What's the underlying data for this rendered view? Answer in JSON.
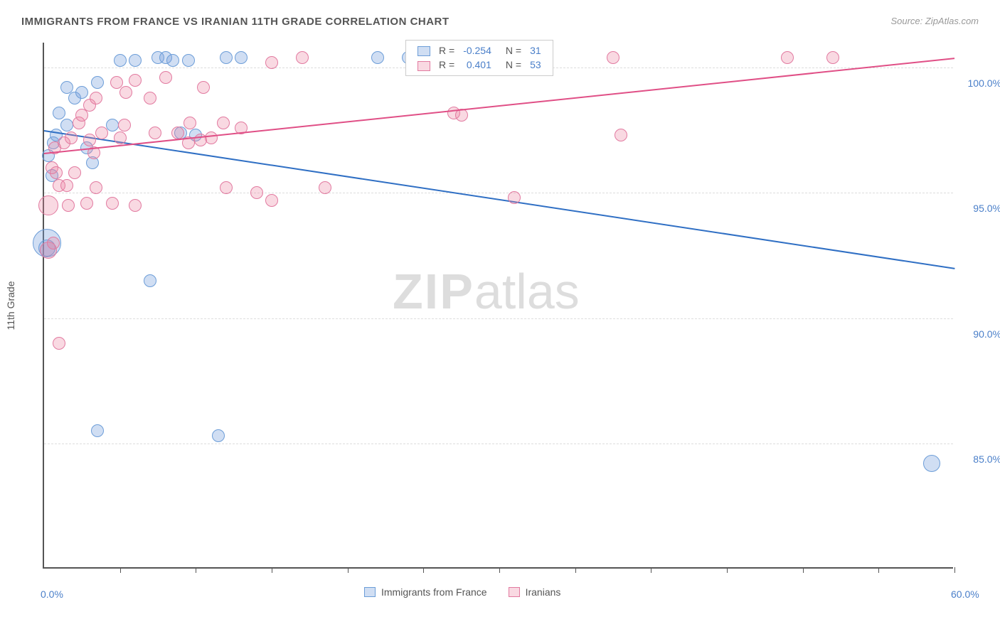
{
  "title": "IMMIGRANTS FROM FRANCE VS IRANIAN 11TH GRADE CORRELATION CHART",
  "source": "Source: ZipAtlas.com",
  "ylabel": "11th Grade",
  "watermark": {
    "bold": "ZIP",
    "rest": "atlas"
  },
  "chart": {
    "type": "scatter",
    "xlim": [
      0,
      60
    ],
    "ylim": [
      80,
      101
    ],
    "x_ticks_minor": [
      5,
      10,
      15,
      20,
      25,
      30,
      35,
      40,
      45,
      50,
      55,
      60
    ],
    "x_labels": [
      {
        "v": 0,
        "label": "0.0%"
      },
      {
        "v": 60,
        "label": "60.0%"
      }
    ],
    "y_gridlines": [
      85,
      90,
      95,
      100
    ],
    "y_labels": [
      {
        "v": 85,
        "label": "85.0%"
      },
      {
        "v": 90,
        "label": "90.0%"
      },
      {
        "v": 95,
        "label": "95.0%"
      },
      {
        "v": 100,
        "label": "100.0%"
      }
    ],
    "series": [
      {
        "name": "Immigrants from France",
        "fill": "rgba(120,160,220,0.35)",
        "stroke": "#6c9dd8",
        "line_color": "#2f6fc4",
        "marker_r": 9,
        "trend": {
          "x1": 0,
          "y1": 97.5,
          "x2": 60,
          "y2": 92.0
        },
        "stats": {
          "R": "-0.254",
          "N": "31"
        },
        "points": [
          {
            "x": 0.2,
            "y": 93.0,
            "r": 20
          },
          {
            "x": 0.2,
            "y": 92.8,
            "r": 12
          },
          {
            "x": 0.3,
            "y": 96.5
          },
          {
            "x": 0.5,
            "y": 95.7
          },
          {
            "x": 0.6,
            "y": 97.0
          },
          {
            "x": 0.8,
            "y": 97.3
          },
          {
            "x": 1.5,
            "y": 97.7
          },
          {
            "x": 1.0,
            "y": 98.2
          },
          {
            "x": 1.5,
            "y": 99.2
          },
          {
            "x": 2.0,
            "y": 98.8
          },
          {
            "x": 2.5,
            "y": 99.0
          },
          {
            "x": 2.8,
            "y": 96.8
          },
          {
            "x": 3.2,
            "y": 96.2
          },
          {
            "x": 3.5,
            "y": 99.4
          },
          {
            "x": 4.5,
            "y": 97.7
          },
          {
            "x": 5.0,
            "y": 100.3
          },
          {
            "x": 6.0,
            "y": 100.3
          },
          {
            "x": 7.5,
            "y": 100.4
          },
          {
            "x": 8.0,
            "y": 100.4
          },
          {
            "x": 8.5,
            "y": 100.3
          },
          {
            "x": 9.0,
            "y": 97.4
          },
          {
            "x": 9.5,
            "y": 100.3
          },
          {
            "x": 10.0,
            "y": 97.3
          },
          {
            "x": 12.0,
            "y": 100.4
          },
          {
            "x": 13.0,
            "y": 100.4
          },
          {
            "x": 22.0,
            "y": 100.4
          },
          {
            "x": 24.0,
            "y": 100.4
          },
          {
            "x": 7.0,
            "y": 91.5
          },
          {
            "x": 3.5,
            "y": 85.5
          },
          {
            "x": 11.5,
            "y": 85.3
          },
          {
            "x": 58.5,
            "y": 84.2,
            "r": 12
          }
        ]
      },
      {
        "name": "Iranians",
        "fill": "rgba(235,130,160,0.30)",
        "stroke": "#e27aa0",
        "line_color": "#e04f86",
        "marker_r": 9,
        "trend": {
          "x1": 0,
          "y1": 96.6,
          "x2": 60,
          "y2": 100.4
        },
        "stats": {
          "R": "0.401",
          "N": "53"
        },
        "points": [
          {
            "x": 0.3,
            "y": 94.5,
            "r": 14
          },
          {
            "x": 0.3,
            "y": 92.7,
            "r": 12
          },
          {
            "x": 0.5,
            "y": 96.0
          },
          {
            "x": 0.7,
            "y": 96.8
          },
          {
            "x": 0.8,
            "y": 95.8
          },
          {
            "x": 0.6,
            "y": 93.0
          },
          {
            "x": 1.0,
            "y": 95.3
          },
          {
            "x": 1.0,
            "y": 89.0
          },
          {
            "x": 1.3,
            "y": 97.0
          },
          {
            "x": 1.5,
            "y": 95.3
          },
          {
            "x": 1.6,
            "y": 94.5
          },
          {
            "x": 1.8,
            "y": 97.2
          },
          {
            "x": 2.0,
            "y": 95.8
          },
          {
            "x": 2.3,
            "y": 97.8
          },
          {
            "x": 2.5,
            "y": 98.1
          },
          {
            "x": 2.8,
            "y": 94.6
          },
          {
            "x": 3.0,
            "y": 97.1
          },
          {
            "x": 3.0,
            "y": 98.5
          },
          {
            "x": 3.3,
            "y": 96.6
          },
          {
            "x": 3.4,
            "y": 95.2
          },
          {
            "x": 3.4,
            "y": 98.8
          },
          {
            "x": 3.8,
            "y": 97.4
          },
          {
            "x": 4.5,
            "y": 94.6
          },
          {
            "x": 4.8,
            "y": 99.4
          },
          {
            "x": 5.0,
            "y": 97.2
          },
          {
            "x": 5.3,
            "y": 97.7
          },
          {
            "x": 5.4,
            "y": 99.0
          },
          {
            "x": 6.0,
            "y": 94.5
          },
          {
            "x": 6.0,
            "y": 99.5
          },
          {
            "x": 7.0,
            "y": 98.8
          },
          {
            "x": 7.3,
            "y": 97.4
          },
          {
            "x": 8.0,
            "y": 99.6
          },
          {
            "x": 8.8,
            "y": 97.4
          },
          {
            "x": 9.5,
            "y": 97.0
          },
          {
            "x": 9.6,
            "y": 97.8
          },
          {
            "x": 10.3,
            "y": 97.1
          },
          {
            "x": 10.5,
            "y": 99.2
          },
          {
            "x": 11.0,
            "y": 97.2
          },
          {
            "x": 11.8,
            "y": 97.8
          },
          {
            "x": 12.0,
            "y": 95.2
          },
          {
            "x": 13.0,
            "y": 97.6
          },
          {
            "x": 14.0,
            "y": 95.0
          },
          {
            "x": 15.0,
            "y": 100.2
          },
          {
            "x": 15.0,
            "y": 94.7
          },
          {
            "x": 17.0,
            "y": 100.4
          },
          {
            "x": 18.5,
            "y": 95.2
          },
          {
            "x": 27.0,
            "y": 98.2
          },
          {
            "x": 27.5,
            "y": 98.1
          },
          {
            "x": 31.0,
            "y": 94.8
          },
          {
            "x": 37.5,
            "y": 100.4
          },
          {
            "x": 38.0,
            "y": 97.3
          },
          {
            "x": 49.0,
            "y": 100.4
          },
          {
            "x": 52.0,
            "y": 100.4
          }
        ]
      }
    ]
  },
  "legend_bottom": [
    {
      "label": "Immigrants from France",
      "fill": "rgba(120,160,220,0.35)",
      "stroke": "#6c9dd8"
    },
    {
      "label": "Iranians",
      "fill": "rgba(235,130,160,0.30)",
      "stroke": "#e27aa0"
    }
  ],
  "legend_top": {
    "rows": [
      {
        "fill": "rgba(120,160,220,0.35)",
        "stroke": "#6c9dd8",
        "R": "-0.254",
        "N": "31"
      },
      {
        "fill": "rgba(235,130,160,0.30)",
        "stroke": "#e27aa0",
        "R": "0.401",
        "N": "53"
      }
    ]
  }
}
